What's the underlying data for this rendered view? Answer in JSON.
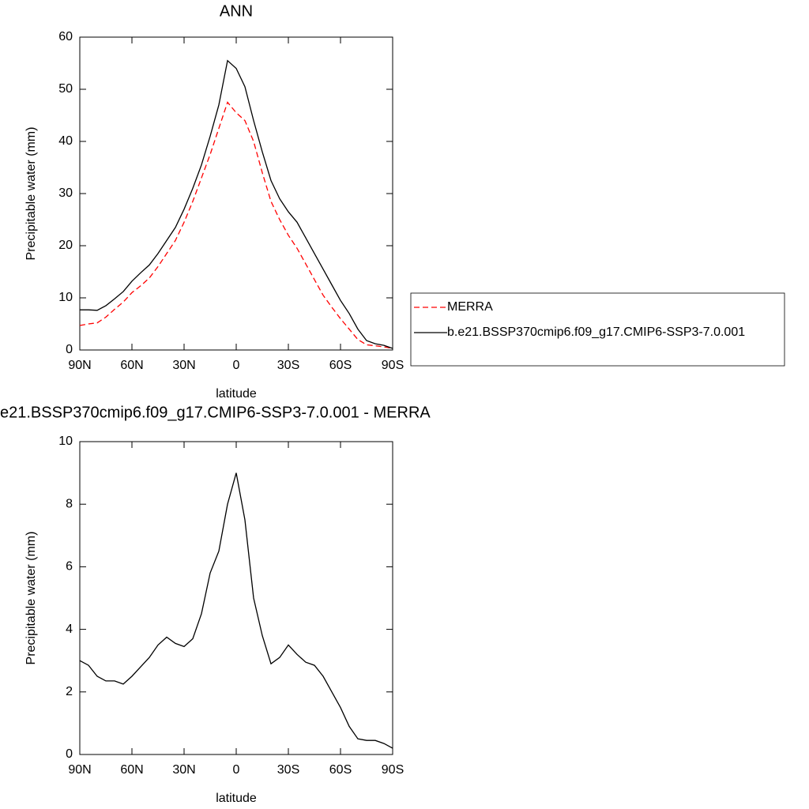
{
  "chart_data": [
    {
      "type": "line",
      "title": "ANN",
      "x_label": "latitude",
      "y_label": "Precipitable water (mm)",
      "x": [
        90,
        85,
        80,
        75,
        70,
        65,
        60,
        55,
        50,
        45,
        40,
        35,
        30,
        25,
        20,
        15,
        10,
        5,
        0,
        -5,
        -10,
        -15,
        -20,
        -25,
        -30,
        -35,
        -40,
        -45,
        -50,
        -55,
        -60,
        -65,
        -70,
        -75,
        -80,
        -85,
        -90
      ],
      "series": [
        {
          "name": "MERRA",
          "color": "#ff0000",
          "style": "dashed",
          "values": [
            4.7,
            5,
            5.2,
            6.3,
            7.8,
            9.2,
            11,
            12.3,
            13.8,
            16,
            18.5,
            21,
            24.5,
            28.5,
            33,
            37.5,
            42.5,
            47.5,
            45.5,
            44,
            40,
            34,
            28.5,
            25,
            22,
            19.5,
            16.5,
            13.5,
            10.5,
            8.2,
            6,
            4,
            2,
            1,
            0.8,
            0.6,
            0.3
          ]
        },
        {
          "name": "b.e21.BSSP370cmip6.f09_g17.CMIP6-SSP3-7.0.001",
          "color": "#000000",
          "style": "solid",
          "values": [
            7.7,
            7.7,
            7.6,
            8.5,
            9.8,
            11.2,
            13.2,
            14.8,
            16.3,
            18.5,
            21,
            23.5,
            27,
            31,
            35.5,
            41,
            47,
            55.5,
            54,
            50.5,
            44,
            38,
            32.5,
            29,
            26.5,
            24.5,
            21.5,
            18.5,
            15.5,
            12.5,
            9.5,
            7,
            4,
            1.8,
            1.2,
            0.9,
            0.3
          ]
        }
      ],
      "xlim": [
        90,
        -90
      ],
      "xticks": [
        {
          "value": 90,
          "label": "90N"
        },
        {
          "value": 60,
          "label": "60N"
        },
        {
          "value": 30,
          "label": "30N"
        },
        0,
        {
          "value": -30,
          "label": "30S"
        },
        {
          "value": -60,
          "label": "60S"
        },
        {
          "value": -90,
          "label": "90S"
        }
      ],
      "ylim": [
        0,
        60
      ],
      "yticks": [
        0,
        10,
        20,
        30,
        40,
        50,
        60
      ],
      "legend": "right"
    },
    {
      "type": "line",
      "title": "e21.BSSP370cmip6.f09_g17.CMIP6-SSP3-7.0.001 - MERRA",
      "x_label": "latitude",
      "y_label": "Precipitable water (mm)",
      "x": [
        90,
        85,
        80,
        75,
        70,
        65,
        60,
        55,
        50,
        45,
        40,
        35,
        30,
        25,
        20,
        15,
        10,
        5,
        0,
        -5,
        -10,
        -15,
        -20,
        -25,
        -30,
        -35,
        -40,
        -45,
        -50,
        -55,
        -60,
        -65,
        -70,
        -75,
        -80,
        -85,
        -90
      ],
      "series": [
        {
          "color": "#000000",
          "style": "solid",
          "values": [
            3,
            2.85,
            2.5,
            2.35,
            2.35,
            2.25,
            2.5,
            2.8,
            3.1,
            3.5,
            3.75,
            3.55,
            3.45,
            3.7,
            4.5,
            5.8,
            6.5,
            8,
            9,
            7.5,
            5,
            3.8,
            2.9,
            3.1,
            3.5,
            3.2,
            2.95,
            2.85,
            2.5,
            2,
            1.5,
            0.9,
            0.5,
            0.45,
            0.45,
            0.35,
            0.2
          ]
        }
      ],
      "xlim": [
        90,
        -90
      ],
      "xticks": [
        {
          "value": 90,
          "label": "90N"
        },
        {
          "value": 60,
          "label": "60N"
        },
        {
          "value": 30,
          "label": "30N"
        },
        0,
        {
          "value": -30,
          "label": "30S"
        },
        {
          "value": -60,
          "label": "60S"
        },
        {
          "value": -90,
          "label": "90S"
        }
      ],
      "ylim": [
        0,
        10
      ],
      "yticks": [
        0,
        2,
        4,
        6,
        8,
        10
      ]
    }
  ]
}
